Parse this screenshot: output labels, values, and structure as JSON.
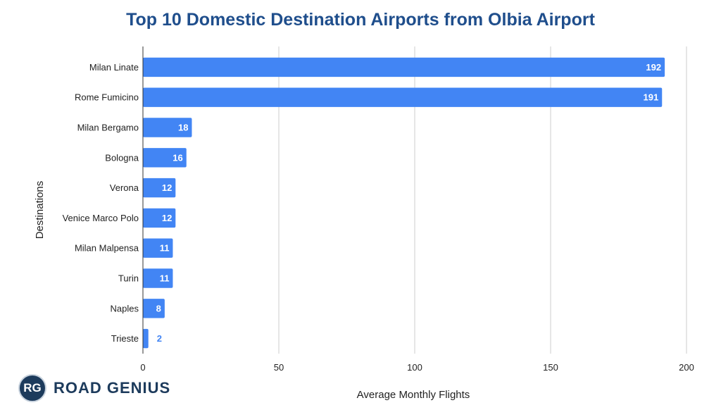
{
  "chart_data": {
    "type": "bar",
    "orientation": "horizontal",
    "title": "Top 10 Domestic Destination Airports from Olbia Airport",
    "xlabel": "Average Monthly Flights",
    "ylabel": "Destinations",
    "xlim": [
      0,
      200
    ],
    "xticks": [
      0,
      50,
      100,
      150,
      200
    ],
    "grid": true,
    "bar_color": "#4285f4",
    "categories": [
      "Milan Linate",
      "Rome Fumicino",
      "Milan Bergamo",
      "Bologna",
      "Verona",
      "Venice Marco Polo",
      "Milan Malpensa",
      "Turin",
      "Naples",
      "Trieste"
    ],
    "values": [
      192,
      191,
      18,
      16,
      12,
      12,
      11,
      11,
      8,
      2
    ]
  },
  "branding": {
    "badge": "RG",
    "name": "ROAD GENIUS"
  }
}
